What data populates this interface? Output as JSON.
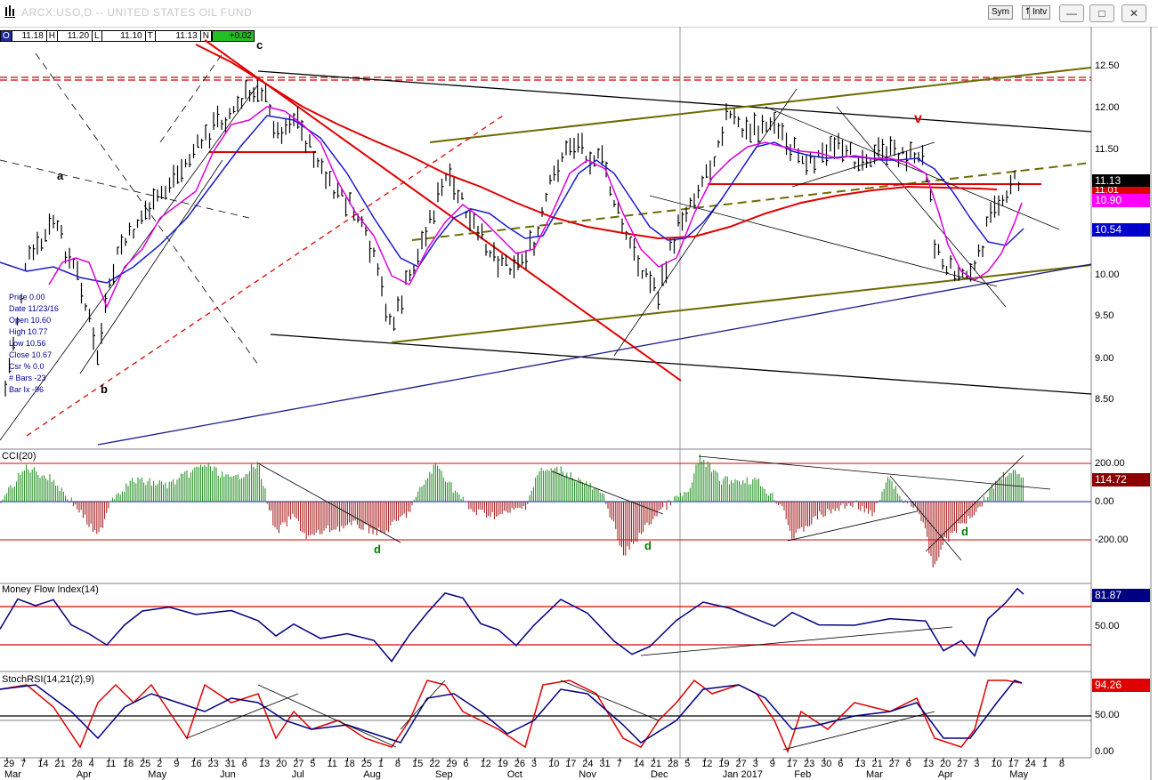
{
  "window": {
    "title": "ARCX:USO,D -- UNITED STATES OIL FUND",
    "buttons": {
      "sym": "Sym",
      "intv": "Intv"
    }
  },
  "ohlc_bar": [
    {
      "label": "O",
      "value": "11.18"
    },
    {
      "label": "H",
      "value": "11.20"
    },
    {
      "label": "L",
      "value": "11.10"
    },
    {
      "label": "T",
      "value": "11.13"
    },
    {
      "label": "N",
      "value": "+0.02"
    }
  ],
  "info_panel": [
    {
      "k": "Price",
      "v": "0.00"
    },
    {
      "k": "Date",
      "v": "11/23/16"
    },
    {
      "k": "Open",
      "v": "10.60"
    },
    {
      "k": "High",
      "v": "10.77"
    },
    {
      "k": "Low",
      "v": "10.56"
    },
    {
      "k": "Close",
      "v": "10.67"
    },
    {
      "k": "Csr %",
      "v": "0.0"
    },
    {
      "k": "# Bars",
      "v": "-23"
    },
    {
      "k": "Bar Ix",
      "v": "-96"
    }
  ],
  "annotations": {
    "a": "a",
    "b": "b",
    "c": "c",
    "v": "v",
    "d1": "d",
    "d2": "d",
    "d3": "d"
  },
  "price_axis": [
    "12.50",
    "12.00",
    "11.50",
    "11.00",
    "10.50",
    "10.00",
    "9.50",
    "9.00",
    "8.50"
  ],
  "price_labels": {
    "last": "11.13",
    "ma_red": "11.01",
    "ma_magenta": "10.90",
    "ma_blue": "10.54",
    "colors": {
      "last": "#000000",
      "ma_red": "#e00000",
      "ma_magenta": "#ff00ff",
      "ma_blue": "#0000cc"
    }
  },
  "cci": {
    "title": "CCI(20)",
    "axis": [
      "200.00",
      "0.00",
      "-200.00"
    ],
    "value": "114.72"
  },
  "mfi": {
    "title": "Money Flow Index(14)",
    "axis": [
      "50.00"
    ],
    "value": "81.87"
  },
  "stochrsi": {
    "title": "StochRSI(14,21(2),9)",
    "axis": [
      "50.00",
      "0.00"
    ],
    "value": "94.26"
  },
  "x_days": [
    "29",
    "7",
    "14",
    "21",
    "28",
    "4",
    "11",
    "18",
    "25",
    "2",
    "9",
    "16",
    "23",
    "31",
    "6",
    "13",
    "20",
    "27",
    "5",
    "11",
    "18",
    "25",
    "1",
    "8",
    "15",
    "22",
    "29",
    "6",
    "12",
    "19",
    "26",
    "3",
    "10",
    "17",
    "24",
    "31",
    "7",
    "14",
    "21",
    "28",
    "5",
    "12",
    "19",
    "27",
    "3",
    "9",
    "17",
    "23",
    "30",
    "6",
    "13",
    "21",
    "27",
    "6",
    "13",
    "20",
    "27",
    "3",
    "10",
    "17",
    "24",
    "1",
    "8"
  ],
  "x_months": [
    "Mar",
    "Apr",
    "May",
    "Jun",
    "Jul",
    "Aug",
    "Sep",
    "Oct",
    "Nov",
    "Dec",
    "Jan 2017",
    "Feb",
    "Mar",
    "Apr",
    "May"
  ]
}
